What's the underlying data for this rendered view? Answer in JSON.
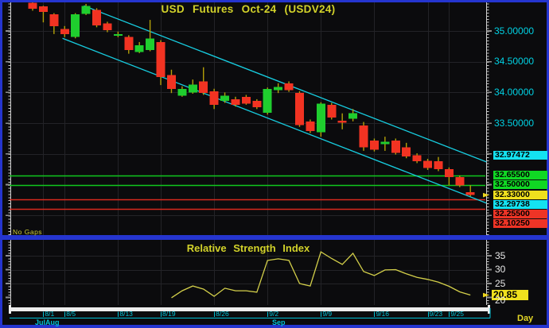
{
  "window": {
    "border_color": "#2535cf",
    "background": "#0b0b0d"
  },
  "main_chart": {
    "title": "USD  Futures  Oct-24  (USDV24)",
    "annotation": "No Gaps",
    "y_axis_labels": [
      {
        "text": "35.00000",
        "value": 35.0
      },
      {
        "text": "34.50000",
        "value": 34.5
      },
      {
        "text": "34.00000",
        "value": 34.0
      },
      {
        "text": "33.50000",
        "value": 33.5
      }
    ],
    "price_tags": [
      {
        "text": "32.97472",
        "value": 32.97472,
        "bg": "#14e2f0",
        "desc": "channel-upper-value"
      },
      {
        "text": "32.65500",
        "value": 32.655,
        "bg": "#10d824",
        "desc": "resistance-line-1"
      },
      {
        "text": "32.50000",
        "value": 32.5,
        "bg": "#10d824",
        "desc": "resistance-line-2"
      },
      {
        "text": "32.33000",
        "value": 32.33,
        "bg": "#efe01e",
        "desc": "last-price"
      },
      {
        "text": "32.29738",
        "value": 32.29738,
        "bg": "#14e2f0",
        "desc": "channel-lower-value"
      },
      {
        "text": "32.25500",
        "value": 32.255,
        "bg": "#ee3426",
        "desc": "support-line-1"
      },
      {
        "text": "32.10250",
        "value": 32.1025,
        "bg": "#ee3426",
        "desc": "support-line-2"
      }
    ]
  },
  "rsi_panel": {
    "title": "Relative  Strength  Index",
    "y_axis_labels": [
      {
        "text": "35",
        "value": 35
      },
      {
        "text": "30",
        "value": 30
      },
      {
        "text": "25",
        "value": 25
      },
      {
        "text": "20",
        "value": 20
      }
    ],
    "current": {
      "text": "20.85",
      "value": 20.85,
      "bg": "#efe01e"
    }
  },
  "time_axis": {
    "dates": [
      {
        "label": "8/1",
        "bar": 1
      },
      {
        "label": "8/5",
        "bar": 3
      },
      {
        "label": "8/13",
        "bar": 8
      },
      {
        "label": "8/19",
        "bar": 12
      },
      {
        "label": "8/26",
        "bar": 17
      },
      {
        "label": "9/2",
        "bar": 22
      },
      {
        "label": "9/9",
        "bar": 27
      },
      {
        "label": "9/16",
        "bar": 32
      },
      {
        "label": "9/23",
        "bar": 37
      },
      {
        "label": "9/25",
        "bar": 39
      }
    ],
    "months": [
      {
        "label": "Jul",
        "x": 44
      },
      {
        "label": "Aug",
        "x": 57
      },
      {
        "label": "Sep",
        "x": 342
      }
    ],
    "interval_label": "Day"
  },
  "chart_data": [
    {
      "type": "candlestick",
      "title": "USD Futures Oct-24 (USDV24)",
      "ylim": [
        31.9,
        35.5
      ],
      "y_ticks": [
        35.0,
        34.5,
        34.0,
        33.5,
        33.0,
        32.5,
        32.0
      ],
      "grid": true,
      "colors": {
        "up": "#1fce2e",
        "down": "#f23322",
        "wick": "#b3a008"
      },
      "candles": [
        [
          35.46,
          35.47,
          35.33,
          35.36
        ],
        [
          35.4,
          35.41,
          35.14,
          35.31
        ],
        [
          35.27,
          35.29,
          34.95,
          35.08
        ],
        [
          35.03,
          35.08,
          34.9,
          34.95
        ],
        [
          34.9,
          35.29,
          34.88,
          35.27
        ],
        [
          35.28,
          35.44,
          35.26,
          35.41
        ],
        [
          35.34,
          35.37,
          35.06,
          35.09
        ],
        [
          35.12,
          35.15,
          34.98,
          35.01
        ],
        [
          34.93,
          34.99,
          34.9,
          34.95
        ],
        [
          34.9,
          34.93,
          34.63,
          34.69
        ],
        [
          34.66,
          34.82,
          34.64,
          34.77
        ],
        [
          34.69,
          35.18,
          34.67,
          34.88
        ],
        [
          34.82,
          34.85,
          34.12,
          34.25
        ],
        [
          34.28,
          34.37,
          33.99,
          34.06
        ],
        [
          33.95,
          34.1,
          33.93,
          34.06
        ],
        [
          34.0,
          34.21,
          33.98,
          34.13
        ],
        [
          34.18,
          34.41,
          33.96,
          33.99
        ],
        [
          34.02,
          34.06,
          33.73,
          33.8
        ],
        [
          33.86,
          34.0,
          33.83,
          33.95
        ],
        [
          33.89,
          33.93,
          33.77,
          33.8
        ],
        [
          33.93,
          33.96,
          33.8,
          33.82
        ],
        [
          33.86,
          33.89,
          33.73,
          33.76
        ],
        [
          33.67,
          34.08,
          33.64,
          34.06
        ],
        [
          34.04,
          34.15,
          33.99,
          34.09
        ],
        [
          34.15,
          34.18,
          34.01,
          34.04
        ],
        [
          33.99,
          34.02,
          33.44,
          33.47
        ],
        [
          33.53,
          33.56,
          33.34,
          33.37
        ],
        [
          33.35,
          33.84,
          33.28,
          33.82
        ],
        [
          33.8,
          33.83,
          33.56,
          33.59
        ],
        [
          33.54,
          33.66,
          33.4,
          33.51
        ],
        [
          33.57,
          33.73,
          33.53,
          33.66
        ],
        [
          33.46,
          33.52,
          33.05,
          33.11
        ],
        [
          33.22,
          33.25,
          33.04,
          33.07
        ],
        [
          33.16,
          33.28,
          33.05,
          33.2
        ],
        [
          33.22,
          33.25,
          32.99,
          33.02
        ],
        [
          33.11,
          33.18,
          32.93,
          32.96
        ],
        [
          32.98,
          33.01,
          32.85,
          32.88
        ],
        [
          32.89,
          32.92,
          32.74,
          32.77
        ],
        [
          32.88,
          32.95,
          32.72,
          32.75
        ],
        [
          32.75,
          32.78,
          32.49,
          32.62
        ],
        [
          32.62,
          32.65,
          32.46,
          32.49
        ],
        [
          32.38,
          32.49,
          32.31,
          32.33
        ]
      ],
      "h_lines": [
        {
          "price": 32.655,
          "color": "#10c81e"
        },
        {
          "price": 32.5,
          "color": "#10c81e"
        },
        {
          "price": 32.255,
          "color": "#d82a1e"
        },
        {
          "price": 32.1025,
          "color": "#d82a1e"
        }
      ],
      "trend_lines": [
        {
          "x1_bar": 4.8,
          "price1": 35.41,
          "x2_bar": 42.5,
          "price2": 32.87,
          "color": "#17cde0"
        },
        {
          "x1_bar": 2.8,
          "price1": 34.88,
          "x2_bar": 42.5,
          "price2": 32.2,
          "color": "#17cde0"
        }
      ],
      "last_price": 32.33
    },
    {
      "type": "line",
      "title": "Relative Strength Index",
      "color": "#d4d04a",
      "ylim": [
        18,
        40
      ],
      "y_ticks": [
        35,
        30,
        25,
        20
      ],
      "start_bar": 13,
      "values": [
        19.9,
        22.4,
        24.1,
        23.0,
        20.4,
        23.3,
        22.4,
        22.4,
        21.9,
        33.3,
        33.9,
        33.3,
        25.0,
        24.1,
        36.4,
        34.0,
        31.9,
        35.9,
        29.3,
        27.9,
        29.9,
        30.0,
        28.5,
        27.2,
        26.5,
        25.5,
        24.0,
        22.0,
        20.85
      ],
      "current": 20.85
    }
  ]
}
